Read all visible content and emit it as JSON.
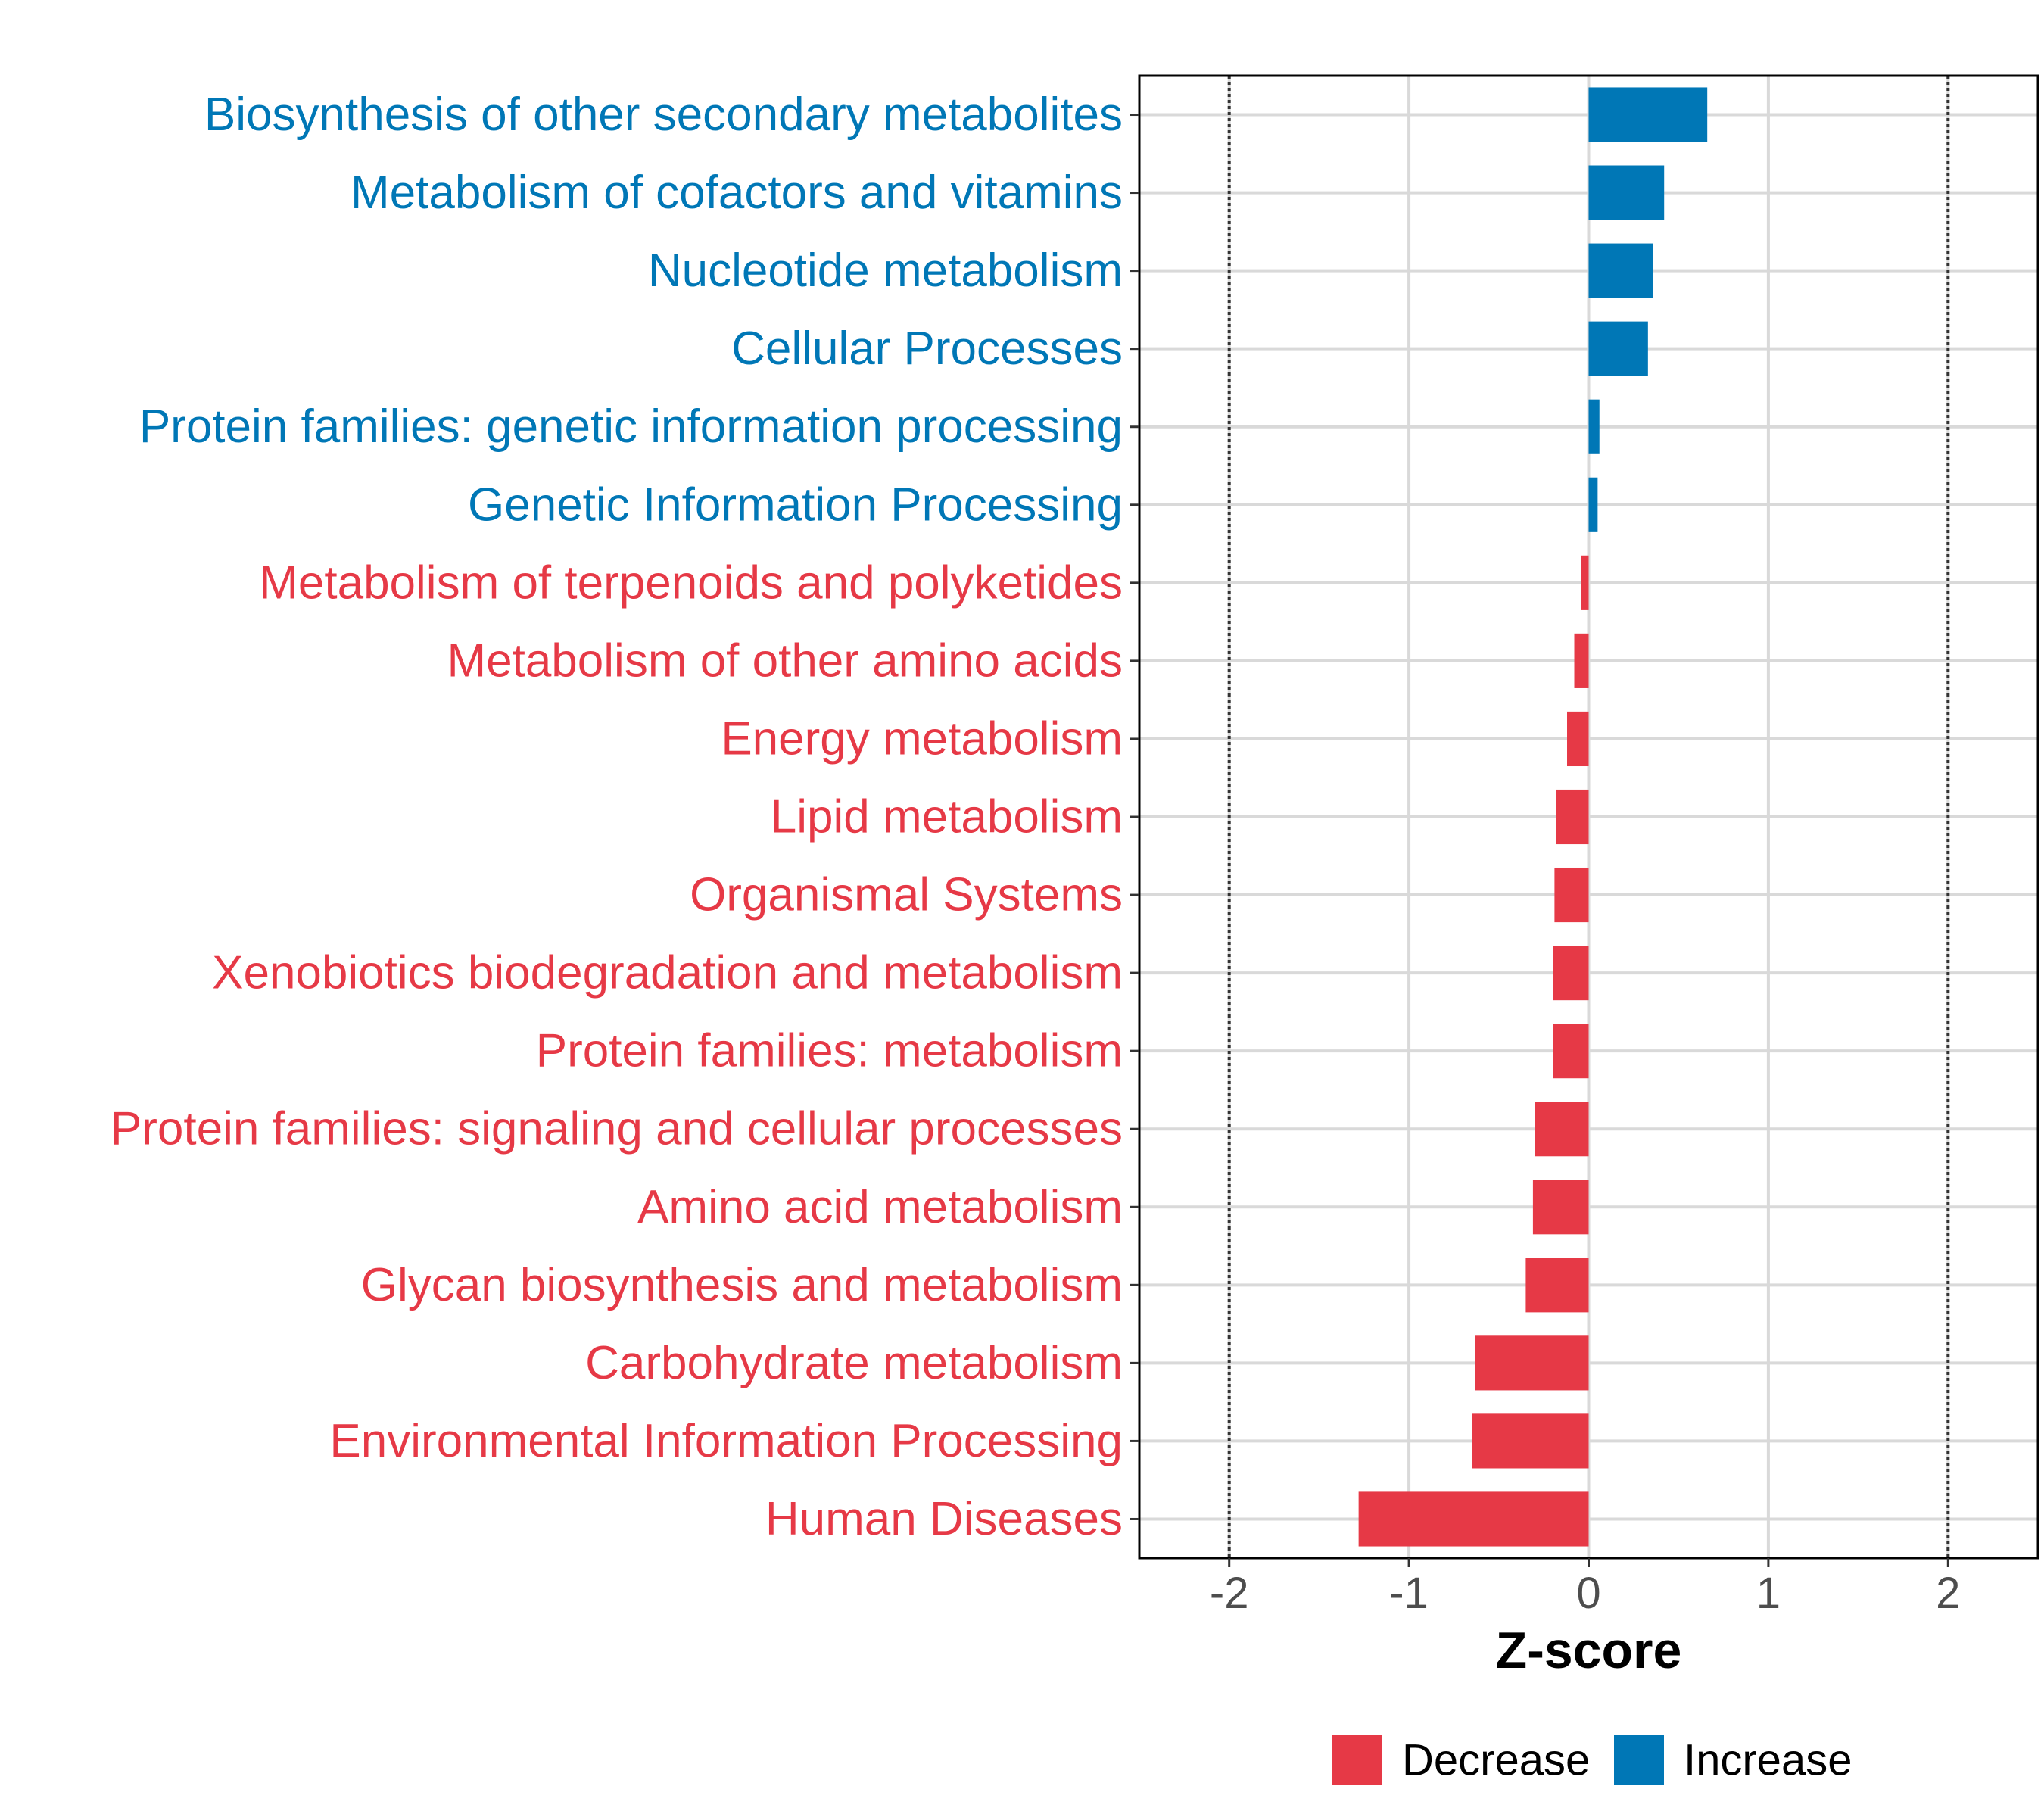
{
  "chart_data": {
    "type": "bar",
    "orientation": "horizontal",
    "title": "",
    "xlabel": "Z-score",
    "ylabel": "",
    "xlim": [
      -2.5,
      2.5
    ],
    "xticks": [
      -2,
      -1,
      0,
      1,
      2
    ],
    "xtick_labels": [
      "-2",
      "-1",
      "0",
      "1",
      "2"
    ],
    "reference_lines": [
      -2,
      2
    ],
    "grid": true,
    "legend_position": "bottom",
    "colors": {
      "Decrease": "#e63946",
      "Increase": "#0077b6"
    },
    "categories": [
      "Biosynthesis of other secondary metabolites",
      "Metabolism of cofactors and vitamins",
      "Nucleotide metabolism",
      "Cellular Processes",
      "Protein families: genetic information processing",
      "Genetic Information Processing",
      "Metabolism of terpenoids and polyketides",
      "Metabolism of other amino acids",
      "Energy metabolism",
      "Lipid metabolism",
      "Organismal Systems",
      "Xenobiotics biodegradation and metabolism",
      "Protein families: metabolism",
      "Protein families: signaling and cellular processes",
      "Amino acid metabolism",
      "Glycan biosynthesis and metabolism",
      "Carbohydrate metabolism",
      "Environmental Information Processing",
      "Human Diseases"
    ],
    "values": [
      0.66,
      0.42,
      0.36,
      0.33,
      0.06,
      0.05,
      -0.04,
      -0.08,
      -0.12,
      -0.18,
      -0.19,
      -0.2,
      -0.2,
      -0.3,
      -0.31,
      -0.35,
      -0.63,
      -0.65,
      -1.28
    ],
    "groups": [
      "Increase",
      "Increase",
      "Increase",
      "Increase",
      "Increase",
      "Increase",
      "Decrease",
      "Decrease",
      "Decrease",
      "Decrease",
      "Decrease",
      "Decrease",
      "Decrease",
      "Decrease",
      "Decrease",
      "Decrease",
      "Decrease",
      "Decrease",
      "Decrease"
    ],
    "legend": [
      "Decrease",
      "Increase"
    ]
  }
}
